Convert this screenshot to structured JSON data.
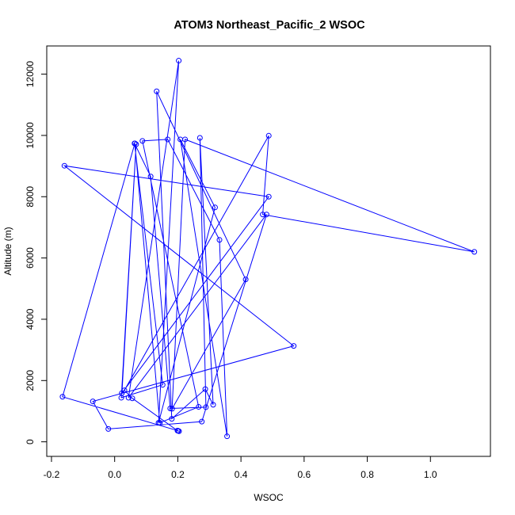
{
  "chart_data": {
    "type": "line",
    "title": "ATOM3 Northeast_Pacific_2 WSOC",
    "xlabel": "WSOC",
    "ylabel": "Altitude (m)",
    "xlim": [
      -0.215,
      1.19
    ],
    "ylim": [
      -475,
      12920
    ],
    "x_ticks": [
      -0.2,
      0.0,
      0.2,
      0.4,
      0.6,
      0.8,
      1.0
    ],
    "x_tick_labels": [
      "-0.2",
      "0.0",
      "0.2",
      "0.4",
      "0.6",
      "0.8",
      "1.0"
    ],
    "y_ticks": [
      0,
      2000,
      4000,
      6000,
      8000,
      10000,
      12000
    ],
    "y_tick_labels": [
      "0",
      "2000",
      "4000",
      "6000",
      "8000",
      "10000",
      "12000"
    ],
    "series_color": "#0000ff",
    "series": [
      {
        "marker": "open-circle",
        "x": [
          0.204,
          0.199,
          0.056,
          0.031,
          0.488,
          0.469,
          1.139,
          0.223,
          0.182,
          0.415,
          0.133,
          0.181,
          0.287,
          0.312,
          0.27,
          0.289,
          0.176,
          0.114,
          0.063,
          0.152,
          0.021,
          0.068,
          0.023,
          0.488,
          -0.159,
          0.567,
          -0.069,
          -0.02,
          0.276,
          0.481,
          0.044,
          0.203,
          0.139,
          0.318,
          0.208,
          0.356,
          0.332,
          0.168,
          0.088,
          0.266,
          0.143,
          0.064,
          -0.165,
          0.201
        ],
        "y": [
          345,
          365,
          1420,
          1680,
          9990,
          7420,
          6200,
          9870,
          1080,
          5300,
          11440,
          750,
          1720,
          1210,
          9920,
          1130,
          1090,
          8660,
          9740,
          1860,
          1440,
          9710,
          1590,
          8000,
          9010,
          3130,
          1320,
          420,
          660,
          7420,
          1440,
          12440,
          620,
          7650,
          9870,
          180,
          6590,
          9870,
          9820,
          1140,
          620,
          9740,
          1470,
          360
        ]
      }
    ]
  }
}
